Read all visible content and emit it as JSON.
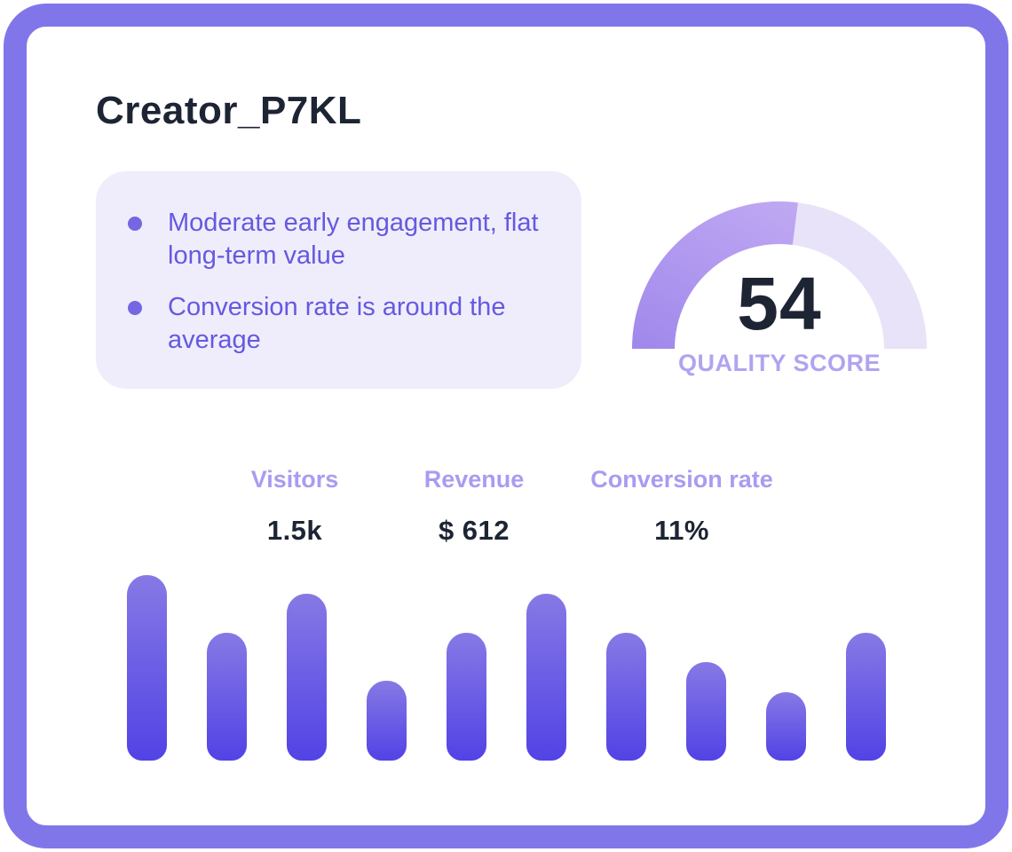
{
  "card": {
    "title": "Creator_P7KL"
  },
  "insights": {
    "items": [
      "Moderate early engagement, flat long-term value",
      "Conversion rate is around the average"
    ]
  },
  "gauge": {
    "value": 54,
    "max": 100,
    "label": "QUALITY SCORE"
  },
  "stats": [
    {
      "label": "Visitors",
      "value": "1.5k"
    },
    {
      "label": "Revenue",
      "value": "$ 612"
    },
    {
      "label": "Conversion rate",
      "value": "11%"
    }
  ],
  "chart_data": {
    "type": "bar",
    "title": "",
    "xlabel": "",
    "ylabel": "",
    "categories": [
      "1",
      "2",
      "3",
      "4",
      "5",
      "6",
      "7",
      "8",
      "9",
      "10"
    ],
    "values": [
      100,
      69,
      90,
      43,
      69,
      90,
      69,
      53,
      37,
      69
    ],
    "ylim": [
      0,
      100
    ],
    "grid": false,
    "legend": false,
    "axis_labels_visible": false
  },
  "colors": {
    "frame": "#8176e9",
    "title_text": "#1d2433",
    "insight_bg": "#efedfb",
    "insight_text": "#6559e0",
    "bullet": "#7467e4",
    "gauge_fill_start": "#a189ec",
    "gauge_fill_end": "#c4aef3",
    "gauge_track": "#e8e3f8",
    "score_text": "#1d2433",
    "score_label": "#b2a3f0",
    "stat_label": "#aa9bf1",
    "stat_value": "#1d2433",
    "bar_top": "#8679e5",
    "bar_bottom": "#5243e5"
  }
}
